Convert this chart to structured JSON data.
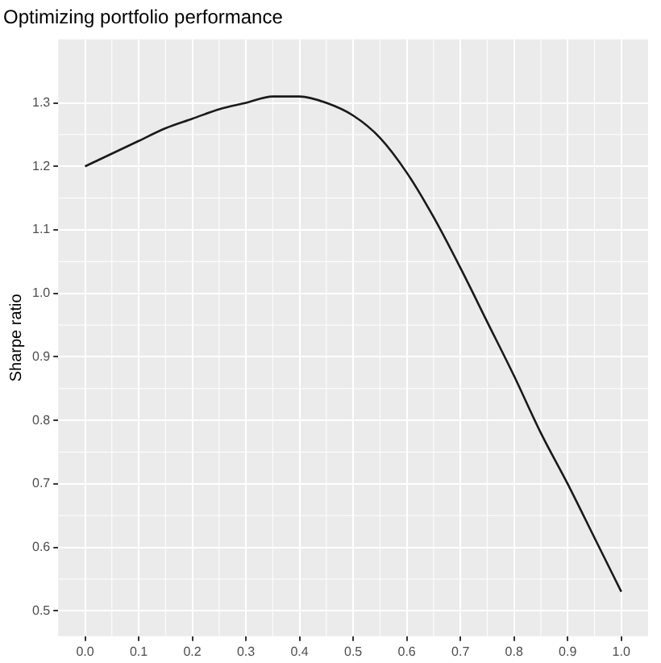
{
  "chart_data": {
    "type": "line",
    "title": "Optimizing portfolio performance",
    "ylabel": "Sharpe ratio",
    "x": [
      0,
      0.05,
      0.1,
      0.15,
      0.2,
      0.25,
      0.3,
      0.35,
      0.4,
      0.45,
      0.5,
      0.55,
      0.6,
      0.65,
      0.7,
      0.75,
      0.8,
      0.85,
      0.9,
      0.95,
      1.0
    ],
    "series": [
      {
        "color": "#1a1a1a",
        "values": [
          1.2,
          1.22,
          1.24,
          1.26,
          1.275,
          1.29,
          1.3,
          1.31,
          1.31,
          1.3,
          1.28,
          1.245,
          1.19,
          1.12,
          1.04,
          0.955,
          0.87,
          0.78,
          0.7,
          0.615,
          0.53
        ]
      }
    ],
    "xlim": [
      -0.05,
      1.05
    ],
    "xticks": [
      {
        "value": 0,
        "label": "0.0"
      },
      0.1,
      0.2,
      0.3,
      0.4,
      0.5,
      0.6,
      0.7,
      0.8,
      0.9,
      {
        "value": 1,
        "label": "1.0"
      }
    ],
    "ylim": [
      0.46,
      1.4
    ],
    "yticks": [
      0.5,
      0.6,
      0.7,
      0.8,
      0.9,
      {
        "value": 1,
        "label": "1.0"
      },
      1.1,
      1.2,
      1.3
    ],
    "grid": true,
    "legend": false,
    "marker": "none",
    "line_style": "solid"
  }
}
